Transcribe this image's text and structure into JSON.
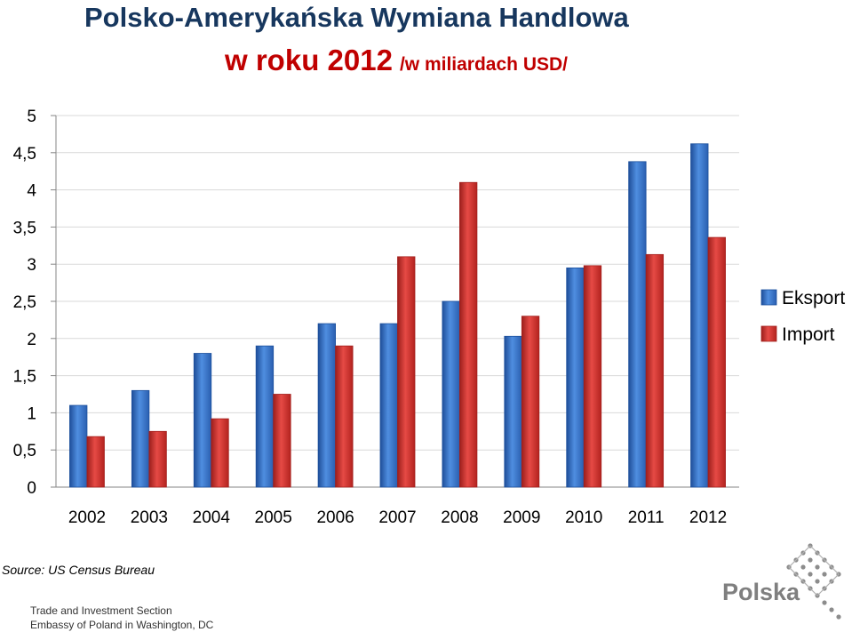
{
  "title": {
    "line1": "Polsko-Amerykańska Wymiana Handlowa",
    "line2_main": "w roku 2012",
    "line2_sub": "/w miliardach  USD/"
  },
  "colors": {
    "eksport": "#3a78d0",
    "import": "#d83a36",
    "grid": "#d9d9d9",
    "axis": "#868686",
    "title_dark": "#17375e",
    "title_red": "#c00000"
  },
  "chart_data": {
    "type": "bar",
    "categories": [
      "2002",
      "2003",
      "2004",
      "2005",
      "2006",
      "2007",
      "2008",
      "2009",
      "2010",
      "2011",
      "2012"
    ],
    "series": [
      {
        "name": "Eksport",
        "values": [
          1.1,
          1.3,
          1.8,
          1.9,
          2.2,
          2.2,
          2.5,
          2.03,
          2.95,
          4.38,
          4.62
        ]
      },
      {
        "name": "Import",
        "values": [
          0.68,
          0.75,
          0.92,
          1.25,
          1.9,
          3.1,
          4.1,
          2.3,
          2.98,
          3.13,
          3.36
        ]
      }
    ],
    "y_ticks": [
      "0",
      "0,5",
      "1",
      "1,5",
      "2",
      "2,5",
      "3",
      "3,5",
      "4",
      "4,5",
      "5"
    ],
    "ylim": [
      0,
      5
    ],
    "grid": true,
    "legend": "right"
  },
  "source": "Source: US Census Bureau",
  "footer": {
    "line1": "Trade and Investment Section",
    "line2": "Embassy of Poland in Washington, DC"
  },
  "logo": {
    "text": "Polska",
    "icon": "polska-logo-icon"
  }
}
